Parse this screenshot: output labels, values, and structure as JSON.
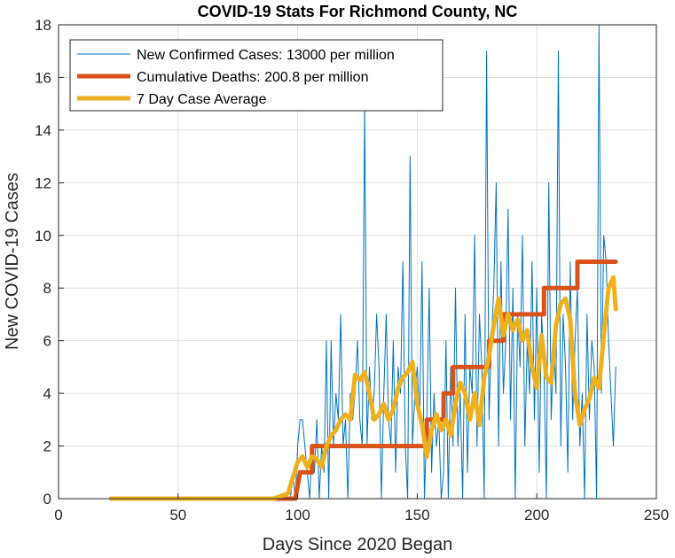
{
  "chart_data": {
    "type": "line",
    "title": "COVID-19 Stats For Richmond County, NC",
    "xlabel": "Days Since 2020 Began",
    "ylabel": "New COVID-19 Cases",
    "xlim": [
      0,
      250
    ],
    "ylim": [
      0,
      18
    ],
    "xticks": [
      0,
      50,
      100,
      150,
      200,
      250
    ],
    "yticks": [
      0,
      2,
      4,
      6,
      8,
      10,
      12,
      14,
      16,
      18
    ],
    "grid": true,
    "legend_position": "top-left",
    "colors": {
      "cases": "#0072BD",
      "deaths": "#D95319",
      "average": "#EDB120",
      "axis": "#262626",
      "grid": "#dfdfdf"
    },
    "series": [
      {
        "name": "New Confirmed Cases: 13000 per million",
        "x": [
          22,
          30,
          40,
          50,
          60,
          70,
          80,
          90,
          96,
          97,
          98,
          99,
          100,
          101,
          102,
          103,
          104,
          105,
          106,
          107,
          108,
          109,
          110,
          111,
          112,
          113,
          114,
          115,
          116,
          117,
          118,
          119,
          120,
          121,
          122,
          123,
          124,
          125,
          126,
          127,
          128,
          129,
          130,
          131,
          132,
          133,
          134,
          135,
          136,
          137,
          138,
          139,
          140,
          141,
          142,
          143,
          144,
          145,
          146,
          147,
          148,
          149,
          150,
          151,
          152,
          153,
          154,
          155,
          156,
          157,
          158,
          159,
          160,
          161,
          162,
          163,
          164,
          165,
          166,
          167,
          168,
          169,
          170,
          171,
          172,
          173,
          174,
          175,
          176,
          177,
          178,
          179,
          180,
          181,
          182,
          183,
          184,
          185,
          186,
          187,
          188,
          189,
          190,
          191,
          192,
          193,
          194,
          195,
          196,
          197,
          198,
          199,
          200,
          201,
          202,
          203,
          204,
          205,
          206,
          207,
          208,
          209,
          210,
          211,
          212,
          213,
          214,
          215,
          216,
          217,
          218,
          219,
          220,
          221,
          222,
          223,
          224,
          225,
          226,
          227,
          228,
          229,
          230,
          231,
          232,
          233
        ],
        "y": [
          0,
          0,
          0,
          0,
          0,
          0,
          0,
          0,
          0,
          0,
          1,
          0,
          2,
          3,
          3,
          2,
          1,
          0,
          2,
          1,
          3,
          0,
          2,
          1,
          6,
          0,
          6,
          2,
          4,
          3,
          7,
          2,
          3,
          0,
          4,
          3,
          4,
          6,
          3,
          2,
          15,
          2,
          5,
          3,
          4,
          7,
          5,
          0,
          4,
          7,
          3,
          2,
          6,
          1,
          5,
          4,
          9,
          2,
          0,
          13,
          2,
          4,
          5,
          3,
          9,
          0,
          3,
          8,
          1,
          4,
          2,
          3,
          0,
          1,
          6,
          0,
          5,
          2,
          8,
          2,
          4,
          0,
          7,
          1,
          5,
          4,
          10,
          2,
          7,
          5,
          0,
          17,
          3,
          6,
          8,
          12,
          2,
          9,
          4,
          6,
          11,
          3,
          8,
          0,
          7,
          5,
          10,
          2,
          6,
          4,
          9,
          3,
          8,
          1,
          7,
          5,
          0,
          12,
          3,
          6,
          4,
          17,
          2,
          7,
          5,
          1,
          9,
          3,
          6,
          8,
          2,
          4,
          0,
          7,
          3,
          6,
          5,
          0,
          18,
          4,
          10,
          9,
          6,
          4,
          2,
          5
        ]
      },
      {
        "name": "Cumulative Deaths: 200.8 per million",
        "x": [
          22,
          99,
          101,
          101,
          106,
          106,
          154,
          154,
          161,
          161,
          165,
          165,
          180,
          180,
          186,
          186,
          203,
          203,
          217,
          217,
          233
        ],
        "y": [
          0,
          0,
          1,
          1,
          1,
          2,
          2,
          3,
          3,
          4,
          4,
          5,
          5,
          6,
          6,
          7,
          7,
          8,
          8,
          9,
          9
        ]
      },
      {
        "name": "7 Day Case Average",
        "x": [
          22,
          30,
          40,
          50,
          60,
          70,
          80,
          90,
          96,
          98,
          100,
          102,
          104,
          106,
          108,
          110,
          112,
          114,
          116,
          118,
          120,
          122,
          124,
          126,
          128,
          130,
          132,
          134,
          136,
          138,
          140,
          142,
          144,
          146,
          148,
          150,
          152,
          154,
          156,
          158,
          160,
          162,
          164,
          166,
          168,
          170,
          172,
          174,
          176,
          178,
          180,
          182,
          184,
          186,
          188,
          190,
          192,
          194,
          196,
          198,
          200,
          202,
          204,
          206,
          208,
          210,
          212,
          214,
          216,
          218,
          220,
          222,
          224,
          226,
          228,
          230,
          232,
          233
        ],
        "y": [
          0,
          0,
          0,
          0,
          0,
          0,
          0,
          0,
          0.2,
          0.8,
          1.4,
          1.6,
          1.2,
          1.6,
          1.5,
          1.2,
          2.0,
          2.4,
          2.6,
          3.0,
          3.2,
          3.0,
          4.7,
          4.5,
          4.8,
          4.0,
          3.0,
          3.2,
          3.6,
          3.0,
          3.4,
          4.2,
          4.6,
          4.8,
          5.2,
          3.6,
          2.8,
          1.6,
          2.6,
          3.2,
          2.6,
          3.0,
          2.4,
          3.6,
          4.4,
          4.0,
          3.0,
          4.0,
          2.8,
          4.6,
          5.4,
          6.6,
          7.6,
          6.2,
          7.0,
          6.4,
          6.8,
          6.0,
          6.4,
          5.0,
          4.2,
          6.2,
          4.6,
          4.4,
          6.6,
          7.4,
          7.6,
          6.8,
          4.0,
          2.8,
          3.4,
          3.8,
          4.6,
          4.2,
          6.2,
          8.0,
          8.4,
          7.2
        ]
      }
    ]
  }
}
